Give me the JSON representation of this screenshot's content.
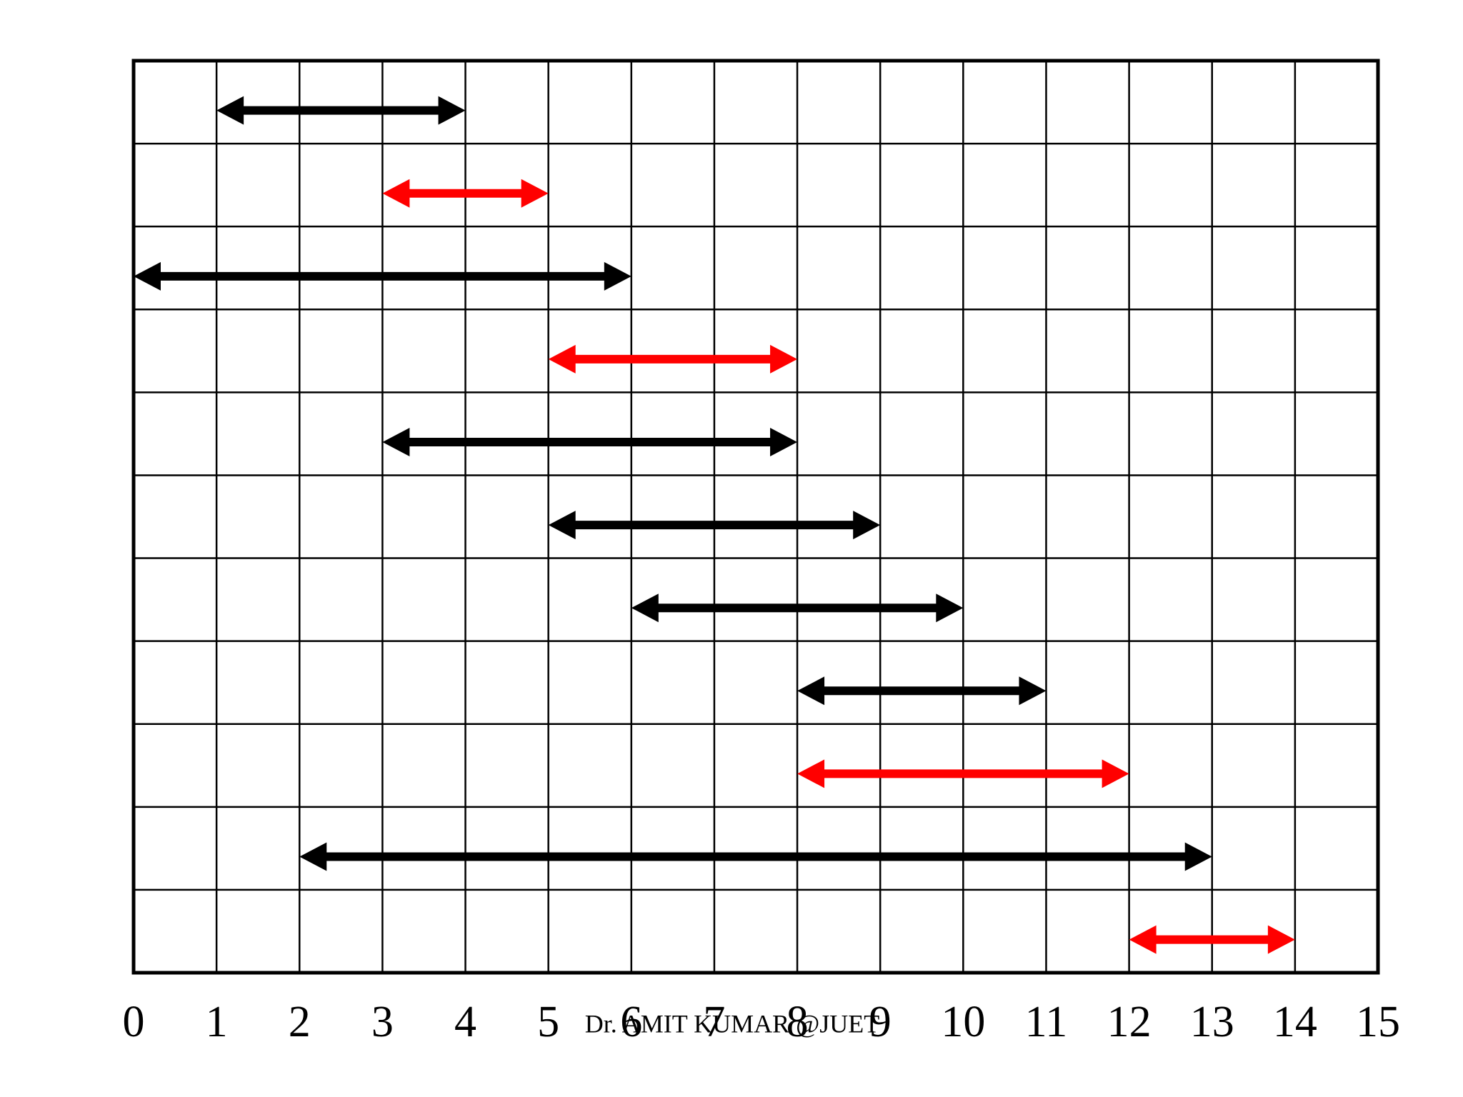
{
  "chart_data": {
    "type": "interval",
    "footer": "Dr. AMIT KUMAR @JUET",
    "intervals": [
      {
        "start": 1,
        "end": 4,
        "color": "#000000"
      },
      {
        "start": 3,
        "end": 5,
        "color": "#ff0000"
      },
      {
        "start": 0,
        "end": 6,
        "color": "#000000"
      },
      {
        "start": 5,
        "end": 8,
        "color": "#ff0000"
      },
      {
        "start": 3,
        "end": 8,
        "color": "#000000"
      },
      {
        "start": 5,
        "end": 9,
        "color": "#000000"
      },
      {
        "start": 6,
        "end": 10,
        "color": "#000000"
      },
      {
        "start": 8,
        "end": 11,
        "color": "#000000"
      },
      {
        "start": 8,
        "end": 12,
        "color": "#ff0000"
      },
      {
        "start": 2,
        "end": 13,
        "color": "#000000"
      },
      {
        "start": 12,
        "end": 14,
        "color": "#ff0000"
      }
    ],
    "xlim": [
      0,
      15
    ],
    "xticks": [
      0,
      1,
      2,
      3,
      4,
      5,
      6,
      7,
      8,
      9,
      10,
      11,
      12,
      13,
      14,
      15
    ],
    "grid": true
  }
}
